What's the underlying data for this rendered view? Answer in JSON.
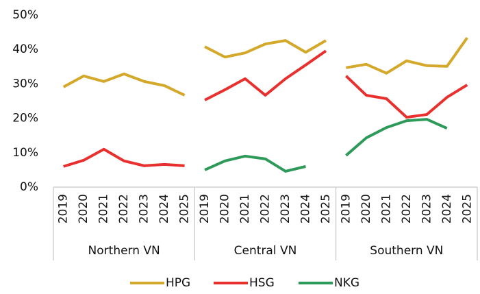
{
  "chart_data": {
    "type": "line",
    "groups": [
      "Northern VN",
      "Central VN",
      "Southern VN"
    ],
    "categories": [
      "2019",
      "2020",
      "2021",
      "2022",
      "2023",
      "2024",
      "2025"
    ],
    "series": [
      {
        "name": "HPG",
        "color": "#d4a82a",
        "values": [
          [
            29.1,
            32.3,
            30.7,
            32.9,
            30.7,
            29.5,
            26.7
          ],
          [
            40.8,
            37.8,
            39.0,
            41.6,
            42.6,
            39.2,
            42.6
          ],
          [
            34.7,
            35.7,
            33.1,
            36.7,
            35.3,
            35.1,
            43.4
          ]
        ]
      },
      {
        "name": "HSG",
        "color": "#e8312f",
        "values": [
          [
            6.0,
            7.8,
            11.0,
            7.6,
            6.2,
            6.6,
            6.2
          ],
          [
            25.3,
            28.3,
            31.5,
            26.7,
            31.5,
            35.5,
            39.6
          ],
          [
            32.3,
            26.7,
            25.7,
            20.3,
            21.1,
            26.1,
            29.7
          ]
        ]
      },
      {
        "name": "NKG",
        "color": "#2e9a5a",
        "values": [
          [
            null,
            null,
            null,
            null,
            null,
            null,
            null
          ],
          [
            5.0,
            7.6,
            9.0,
            8.2,
            4.6,
            6.0,
            null
          ],
          [
            9.2,
            14.3,
            17.3,
            19.3,
            19.7,
            17.1,
            null
          ]
        ]
      }
    ],
    "ylim": [
      0,
      50
    ],
    "yticks": [
      {
        "value": 0,
        "label": "0%"
      },
      {
        "value": 10,
        "label": "10%"
      },
      {
        "value": 20,
        "label": "20%"
      },
      {
        "value": 30,
        "label": "30%"
      },
      {
        "value": 40,
        "label": "40%"
      },
      {
        "value": 50,
        "label": "50%"
      }
    ],
    "grid": false,
    "legend": "bottom"
  }
}
